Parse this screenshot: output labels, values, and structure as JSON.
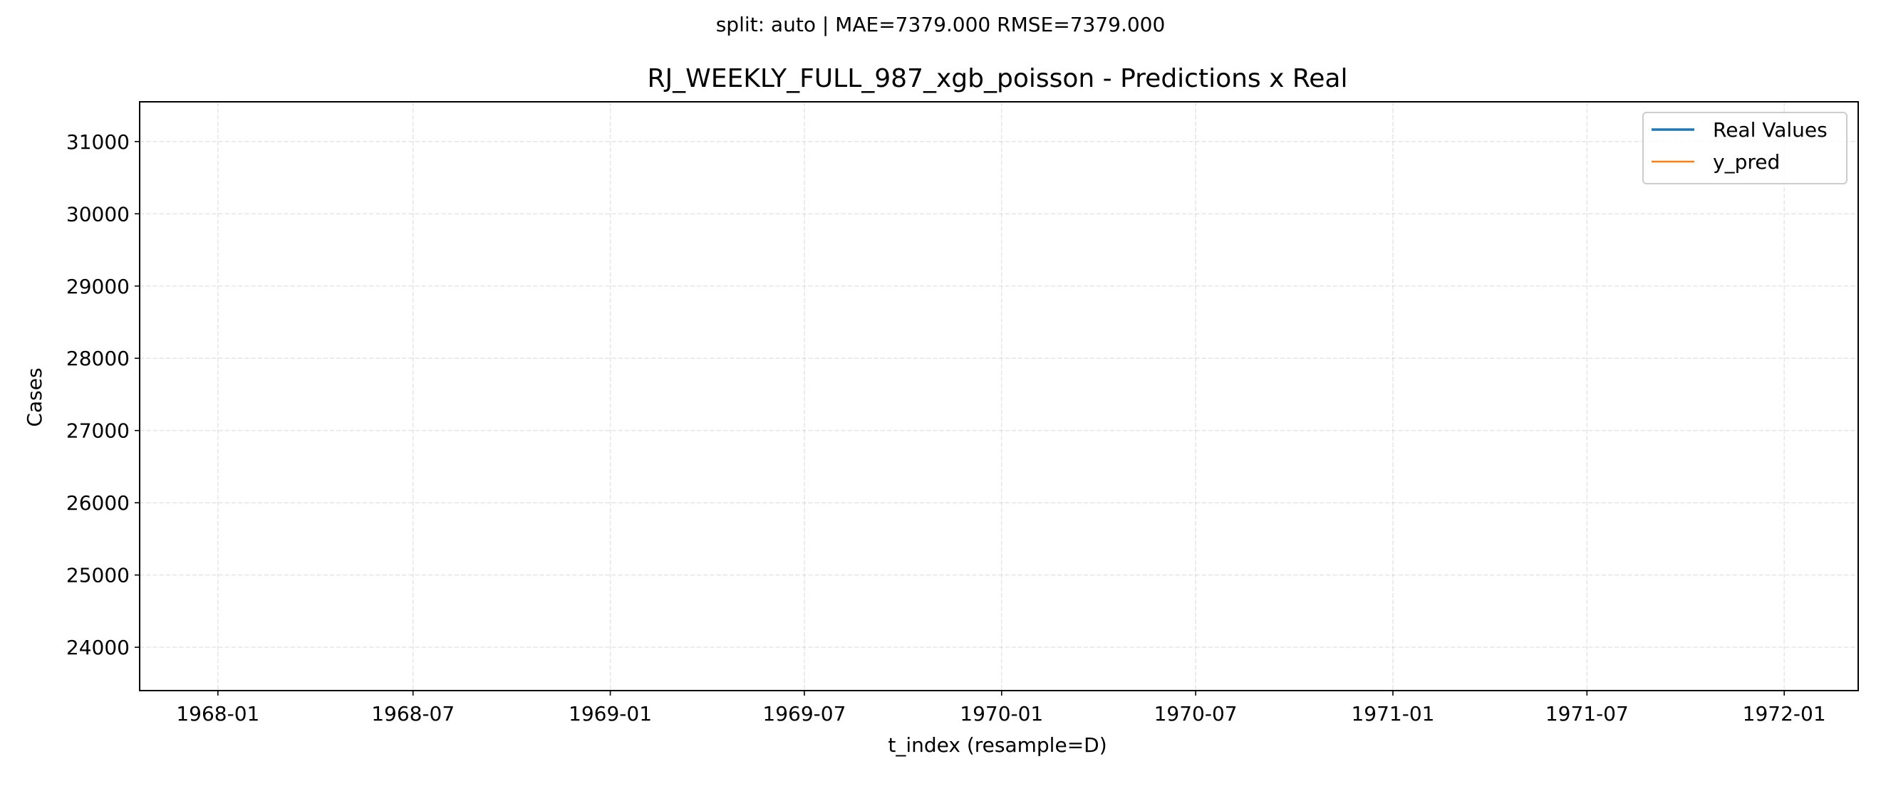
{
  "suptitle": "split: auto | MAE=7379.000  RMSE=7379.000",
  "chart_data": {
    "type": "line",
    "title": "RJ_WEEKLY_FULL_987_xgb_poisson - Predictions x Real",
    "xlabel": "t_index (resample=D)",
    "ylabel": "Cases",
    "x_type": "date",
    "xlim": [
      "1967-10-20",
      "1972-03-10"
    ],
    "ylim": [
      23400,
      31550
    ],
    "x_ticks": [
      "1968-01",
      "1968-07",
      "1969-01",
      "1969-07",
      "1970-01",
      "1970-07",
      "1971-01",
      "1971-07",
      "1972-01"
    ],
    "x_tick_dates": [
      "1968-01-01",
      "1968-07-01",
      "1969-01-01",
      "1969-07-01",
      "1970-01-01",
      "1970-07-01",
      "1971-01-01",
      "1971-07-01",
      "1972-01-01"
    ],
    "y_ticks": [
      24000,
      25000,
      26000,
      27000,
      28000,
      29000,
      30000,
      31000
    ],
    "grid": true,
    "legend_position": "top-right",
    "series": [
      {
        "name": "Real Values",
        "color": "#1f77b4",
        "x": [],
        "y": []
      },
      {
        "name": "y_pred",
        "color": "#ff7f0e",
        "x": [],
        "y": []
      }
    ]
  }
}
